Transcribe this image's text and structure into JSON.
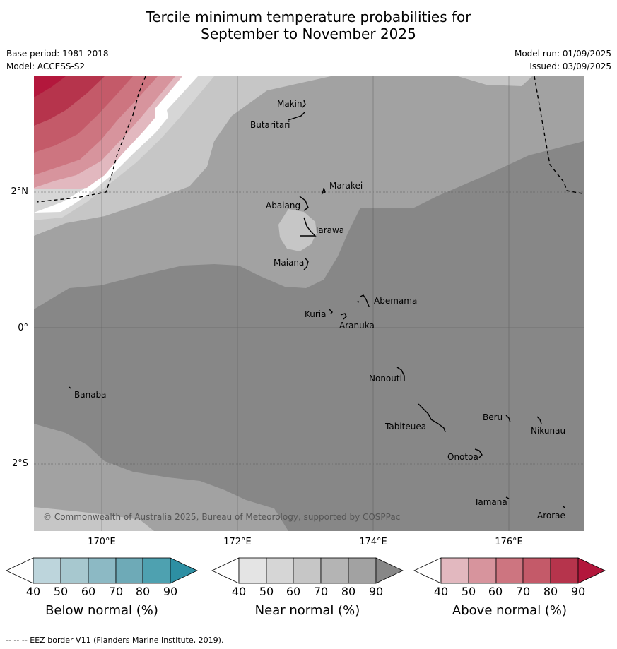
{
  "title_line1": "Tercile minimum temperature probabilities for",
  "title_line2": "September to November 2025",
  "base_period": "Base period: 1981-2018",
  "model": "Model: ACCESS-S2",
  "model_run": "Model run: 01/09/2025",
  "issued": "Issued: 03/09/2025",
  "lat_labels": [
    "2°N",
    "0°",
    "2°S"
  ],
  "lon_labels": [
    "170°E",
    "172°E",
    "174°E",
    "176°E"
  ],
  "places": {
    "makin": "Makin",
    "butaritari": "Butaritari",
    "marakei": "Marakei",
    "abaiang": "Abaiang",
    "tarawa": "Tarawa",
    "maiana": "Maiana",
    "abemama": "Abemama",
    "kuria": "Kuria",
    "aranuka": "Aranuka",
    "nonouti": "Nonouti",
    "banaba": "Banaba",
    "beru": "Beru",
    "nikunau": "Nikunau",
    "tabiteuea": "Tabiteuea",
    "onotoa": "Onotoa",
    "tamana": "Tamana",
    "arorae": "Arorae"
  },
  "copyright": "© Commonwealth of Australia 2025, Bureau of Meteorology, supported by COSPPac",
  "colorbars": {
    "below": {
      "label": "Below normal (%)",
      "ticks": [
        "40",
        "50",
        "60",
        "70",
        "80",
        "90"
      ],
      "colors": [
        "#bdd5dc",
        "#a7c8cf",
        "#8cb9c4",
        "#6eaab7",
        "#4ea1b0",
        "#2d8fa3"
      ]
    },
    "near": {
      "label": "Near normal (%)",
      "ticks": [
        "40",
        "50",
        "60",
        "70",
        "80",
        "90"
      ],
      "colors": [
        "#e4e4e4",
        "#d6d6d6",
        "#c6c6c6",
        "#b4b4b4",
        "#a2a2a2",
        "#878787"
      ]
    },
    "above": {
      "label": "Above normal (%)",
      "ticks": [
        "40",
        "50",
        "60",
        "70",
        "80",
        "90"
      ],
      "colors": [
        "#e2b8bf",
        "#d7949d",
        "#cd7580",
        "#c45a69",
        "#b6344c",
        "#b3173c"
      ]
    }
  },
  "footer": "--  --  -- EEZ border V11 (Flanders Marine Institute, 2019)."
}
